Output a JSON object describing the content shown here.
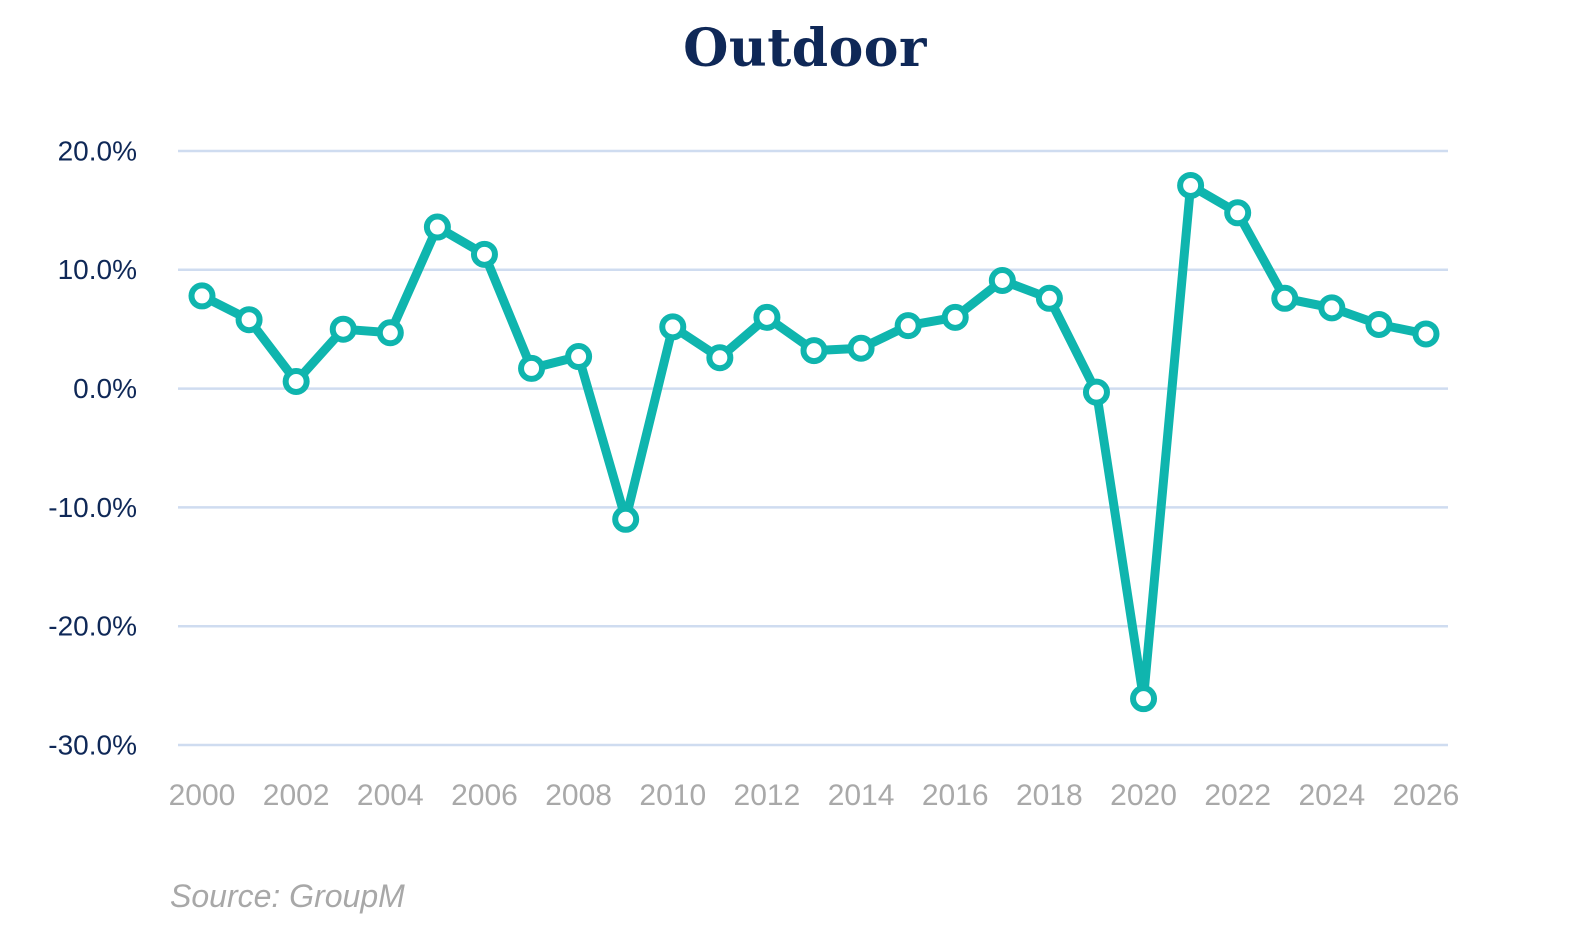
{
  "chart_data": {
    "type": "line",
    "title": "Outdoor",
    "xlabel": "",
    "ylabel": "",
    "x_ticks": [
      "2000",
      "2002",
      "2004",
      "2006",
      "2008",
      "2010",
      "2012",
      "2014",
      "2016",
      "2018",
      "2020",
      "2022",
      "2024",
      "2026"
    ],
    "y_ticks": [
      "20.0%",
      "10.0%",
      "0.0%",
      "-10.0%",
      "-20.0%",
      "-30.0%"
    ],
    "xlim": [
      2000,
      2026
    ],
    "ylim": [
      -30,
      20
    ],
    "grid": "horizontal",
    "x": [
      2000,
      2001,
      2002,
      2003,
      2004,
      2005,
      2006,
      2007,
      2008,
      2009,
      2010,
      2011,
      2012,
      2013,
      2014,
      2015,
      2016,
      2017,
      2018,
      2019,
      2020,
      2021,
      2022,
      2023,
      2024,
      2025,
      2026
    ],
    "series": [
      {
        "values": [
          7.8,
          5.8,
          0.6,
          5.0,
          4.7,
          13.6,
          11.3,
          1.7,
          2.7,
          -11.0,
          5.2,
          2.6,
          6.0,
          3.2,
          3.4,
          5.3,
          6.0,
          9.1,
          7.6,
          -0.3,
          -26.1,
          17.1,
          14.8,
          7.6,
          6.8,
          5.4,
          4.6
        ]
      }
    ],
    "colors": {
      "line": "#0fb5ae",
      "grid": "#cfdcf0",
      "y_tick_text": "#0f2857",
      "x_tick_text": "#a9a9a9",
      "title": "#0f2857"
    }
  },
  "source": "Source: GroupM"
}
